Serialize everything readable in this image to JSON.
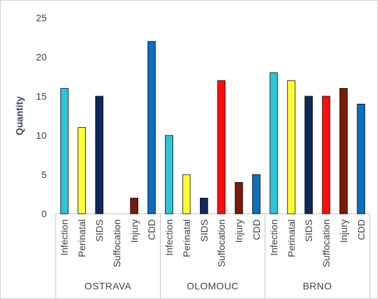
{
  "chart_data": {
    "type": "bar",
    "ylabel": "Quantity",
    "ylim": [
      0,
      25
    ],
    "yticks": [
      0,
      5,
      10,
      15,
      20,
      25
    ],
    "grid": false,
    "legend": "none",
    "groups": [
      {
        "name": "OSTRAVA",
        "categories": [
          "Infection",
          "Perinatal",
          "SIDS",
          "Suffocation",
          "Injury",
          "CDD"
        ],
        "values": [
          16,
          11,
          15,
          0,
          2,
          22
        ]
      },
      {
        "name": "OLOMOUC",
        "categories": [
          "Infection",
          "Perinatal",
          "SIDS",
          "Suffocation",
          "Injury",
          "CDD"
        ],
        "values": [
          10,
          5,
          2,
          17,
          4,
          5
        ]
      },
      {
        "name": "BRNO",
        "categories": [
          "Infection",
          "Perinatal",
          "SIDS",
          "Suffocation",
          "Injury",
          "CDD"
        ],
        "values": [
          18,
          17,
          15,
          15,
          16,
          14
        ]
      }
    ],
    "category_colors": {
      "Infection": "#2ec4d6",
      "Perinatal": "#ffff33",
      "SIDS": "#0d2a5e",
      "Suffocation": "#ff0d0d",
      "Injury": "#7a1a0a",
      "CDD": "#0a6fc2"
    }
  }
}
